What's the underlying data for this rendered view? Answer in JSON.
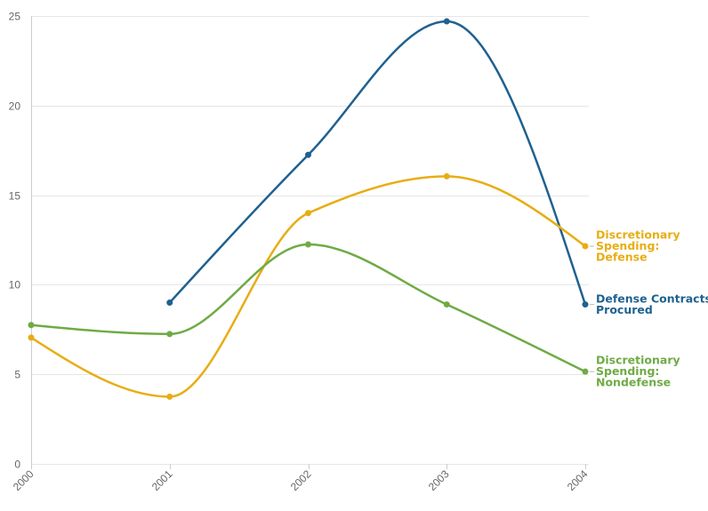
{
  "chart_data": {
    "type": "line",
    "title": "",
    "xlabel": "",
    "ylabel": "",
    "categories": [
      "2000",
      "2001",
      "2002",
      "2003",
      "2004"
    ],
    "ylim": [
      0,
      25
    ],
    "yticks": [
      0,
      5,
      10,
      15,
      20,
      25
    ],
    "grid": true,
    "legend": "end-of-line labels, right",
    "series": [
      {
        "key": "defense_contracts",
        "name": "Defense Contracts Procured",
        "label_lines": [
          "Defense Contracts",
          "Procured"
        ],
        "color": "#1f6190",
        "values": [
          null,
          9.0,
          17.25,
          24.7,
          8.9
        ]
      },
      {
        "key": "discretionary_defense",
        "name": "Discretionary Spending: Defense",
        "label_lines": [
          "Discretionary",
          "Spending:",
          "Defense"
        ],
        "color": "#e8ad13",
        "values": [
          7.05,
          3.75,
          14.0,
          16.05,
          12.15
        ]
      },
      {
        "key": "discretionary_nondefense",
        "name": "Discretionary Spending: Nondefense",
        "label_lines": [
          "Discretionary",
          "Spending:",
          "Nondefense"
        ],
        "color": "#6fab45",
        "values": [
          7.75,
          7.25,
          12.25,
          8.9,
          5.15
        ]
      }
    ]
  }
}
